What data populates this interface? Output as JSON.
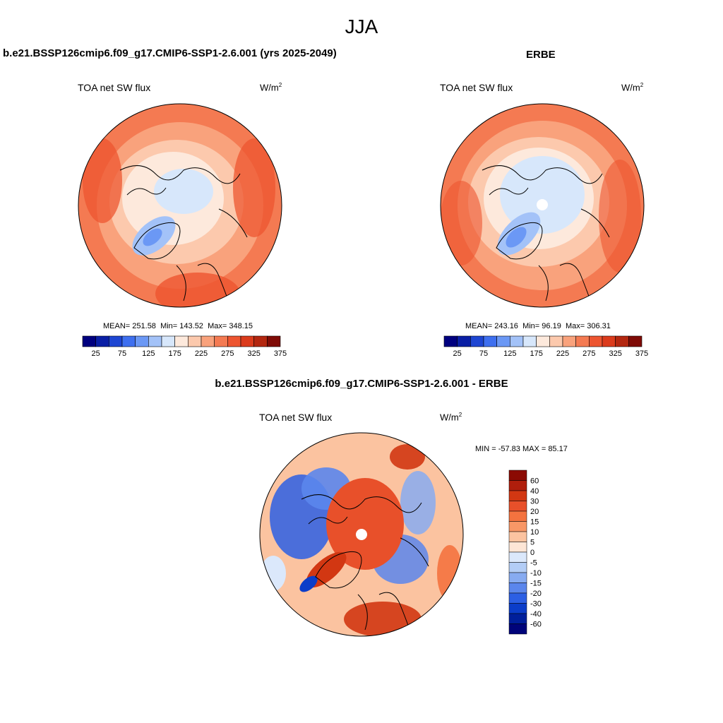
{
  "figure": {
    "season": "JJA"
  },
  "panels": [
    {
      "title": "b.e21.BSSP126cmip6.f09_g17.CMIP6-SSP1-2.6.001 (yrs 2025-2049)",
      "variable": "TOA net SW flux",
      "units_base": "W/m",
      "units_exp": "2",
      "stats": {
        "mean_label": "MEAN=",
        "mean": "251.58",
        "min_label": "Min=",
        "min": "143.52",
        "max_label": "Max=",
        "max": "348.15"
      }
    },
    {
      "title": "ERBE",
      "variable": "TOA net SW flux",
      "units_base": "W/m",
      "units_exp": "2",
      "stats": {
        "mean_label": "MEAN=",
        "mean": "243.16",
        "min_label": "Min=",
        "min": "96.19",
        "max_label": "Max=",
        "max": "306.31"
      }
    },
    {
      "title": "b.e21.BSSP126cmip6.f09_g17.CMIP6-SSP1-2.6.001 - ERBE",
      "variable": "TOA net SW flux",
      "units_base": "W/m",
      "units_exp": "2",
      "stats_text": "MIN = -57.83 MAX =  85.17"
    }
  ],
  "abs_colorbar": {
    "colors": [
      "#00007f",
      "#0a1fa5",
      "#1e46d2",
      "#3e6fef",
      "#6b98f5",
      "#a3c2f8",
      "#d7e7fb",
      "#fde9dc",
      "#fcc9ad",
      "#f9a27c",
      "#f47a52",
      "#ed5530",
      "#db3b1c",
      "#b32710",
      "#7f0b06"
    ],
    "ticks": [
      "25",
      "75",
      "125",
      "175",
      "225",
      "275",
      "325",
      "375"
    ]
  },
  "diff_colorbar": {
    "colors": [
      "#8b0a03",
      "#b01e0c",
      "#d23712",
      "#e8502a",
      "#f4733f",
      "#f89766",
      "#fbc3a0",
      "#fde6d6",
      "#dbe8fb",
      "#b3cdf6",
      "#87abf1",
      "#5b86ec",
      "#2c5fe4",
      "#0b3dc9",
      "#001f9b",
      "#00047a"
    ],
    "ticks": [
      "60",
      "40",
      "30",
      "20",
      "15",
      "10",
      "5",
      "0",
      "-5",
      "-10",
      "-15",
      "-20",
      "-30",
      "-40",
      "-60"
    ]
  },
  "map_colors": {
    "land_outline": "#000000",
    "pole_hole": "#ffffff"
  }
}
